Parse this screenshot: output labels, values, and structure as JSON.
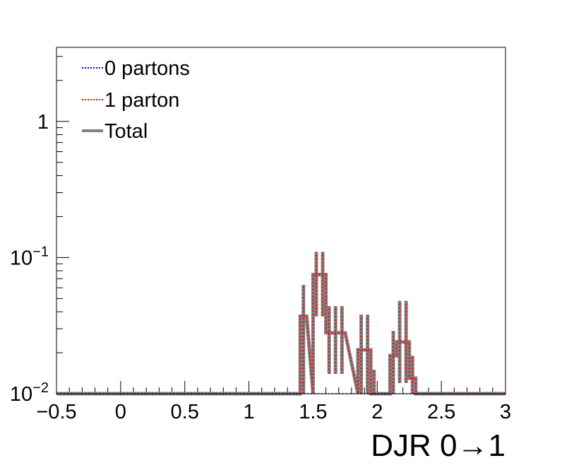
{
  "chart_data": {
    "type": "step-histogram",
    "xlabel": "DJR 0→1",
    "ylabel": "",
    "log_y": true,
    "xlim": [
      -0.5,
      3.0
    ],
    "ylim": [
      0.01,
      3.5
    ],
    "x_ticks": [
      {
        "value": -0.5,
        "label": "−0.5"
      },
      {
        "value": 0,
        "label": "0"
      },
      {
        "value": 0.5,
        "label": "0.5"
      },
      {
        "value": 1,
        "label": "1"
      },
      {
        "value": 1.5,
        "label": "1.5"
      },
      {
        "value": 2,
        "label": "2"
      },
      {
        "value": 2.5,
        "label": "2.5"
      },
      {
        "value": 3,
        "label": "3"
      }
    ],
    "y_ticks": [
      {
        "value": 0.01,
        "base": "10",
        "exp": "−2"
      },
      {
        "value": 0.1,
        "base": "10",
        "exp": "−1"
      },
      {
        "value": 1,
        "base": "1",
        "exp": ""
      }
    ],
    "legend_position": "top-left",
    "bin_width": 0.05,
    "series": [
      {
        "name": "0 partons",
        "color": "#0000ff",
        "style": "dotted",
        "bins": []
      },
      {
        "name": "1 parton",
        "color": "#ff0000",
        "style": "dotted",
        "bins": [
          {
            "x0": 1.4,
            "x1": 1.45,
            "y": 0.037,
            "err_low": 0.01,
            "err_high": 0.063
          },
          {
            "x0": 1.5,
            "x1": 1.55,
            "y": 0.075,
            "err_low": 0.037,
            "err_high": 0.11
          },
          {
            "x0": 1.55,
            "x1": 1.6,
            "y": 0.075,
            "err_low": 0.037,
            "err_high": 0.11
          },
          {
            "x0": 1.6,
            "x1": 1.65,
            "y": 0.028,
            "err_low": 0.014,
            "err_high": 0.044
          },
          {
            "x0": 1.65,
            "x1": 1.7,
            "y": 0.028,
            "err_low": 0.014,
            "err_high": 0.044
          },
          {
            "x0": 1.7,
            "x1": 1.75,
            "y": 0.028,
            "err_low": 0.014,
            "err_high": 0.044
          },
          {
            "x0": 1.85,
            "x1": 1.9,
            "y": 0.021,
            "err_low": 0.01,
            "err_high": 0.038
          },
          {
            "x0": 1.9,
            "x1": 1.95,
            "y": 0.021,
            "err_low": 0.01,
            "err_high": 0.038
          },
          {
            "x0": 1.95,
            "x1": 2.0,
            "y": 0.01,
            "err_low": 0.01,
            "err_high": 0.015
          },
          {
            "x0": 2.1,
            "x1": 2.15,
            "y": 0.019,
            "err_low": 0.01,
            "err_high": 0.029
          },
          {
            "x0": 2.15,
            "x1": 2.2,
            "y": 0.024,
            "err_low": 0.012,
            "err_high": 0.048
          },
          {
            "x0": 2.2,
            "x1": 2.25,
            "y": 0.024,
            "err_low": 0.012,
            "err_high": 0.048
          },
          {
            "x0": 2.25,
            "x1": 2.3,
            "y": 0.013,
            "err_low": 0.01,
            "err_high": 0.019
          }
        ]
      },
      {
        "name": "Total",
        "color": "#808080",
        "style": "solid",
        "bins": []
      }
    ]
  }
}
